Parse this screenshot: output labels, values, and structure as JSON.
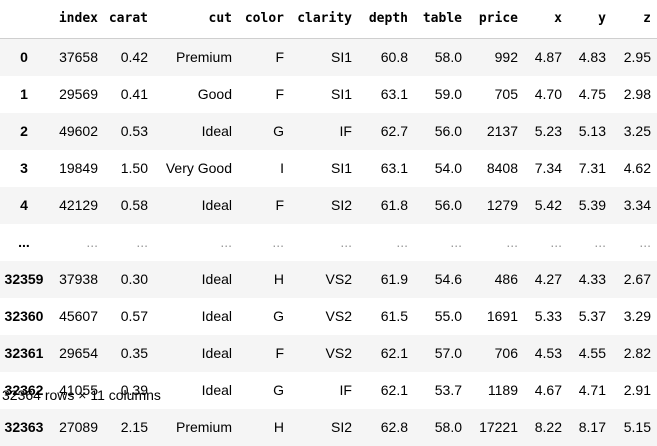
{
  "dataframe": {
    "columns": [
      "index",
      "carat",
      "cut",
      "color",
      "clarity",
      "depth",
      "table",
      "price",
      "x",
      "y",
      "z"
    ],
    "rows": [
      {
        "row_index": "0",
        "values": [
          "37658",
          "0.42",
          "Premium",
          "F",
          "SI1",
          "60.8",
          "58.0",
          "992",
          "4.87",
          "4.83",
          "2.95"
        ]
      },
      {
        "row_index": "1",
        "values": [
          "29569",
          "0.41",
          "Good",
          "F",
          "SI1",
          "63.1",
          "59.0",
          "705",
          "4.70",
          "4.75",
          "2.98"
        ]
      },
      {
        "row_index": "2",
        "values": [
          "49602",
          "0.53",
          "Ideal",
          "G",
          "IF",
          "62.7",
          "56.0",
          "2137",
          "5.23",
          "5.13",
          "3.25"
        ]
      },
      {
        "row_index": "3",
        "values": [
          "19849",
          "1.50",
          "Very Good",
          "I",
          "SI1",
          "63.1",
          "54.0",
          "8408",
          "7.34",
          "7.31",
          "4.62"
        ]
      },
      {
        "row_index": "4",
        "values": [
          "42129",
          "0.58",
          "Ideal",
          "F",
          "SI2",
          "61.8",
          "56.0",
          "1279",
          "5.42",
          "5.39",
          "3.34"
        ]
      },
      {
        "row_index": "...",
        "values": [
          "...",
          "...",
          "...",
          "...",
          "...",
          "...",
          "...",
          "...",
          "...",
          "...",
          "..."
        ]
      },
      {
        "row_index": "32359",
        "values": [
          "37938",
          "0.30",
          "Ideal",
          "H",
          "VS2",
          "61.9",
          "54.6",
          "486",
          "4.27",
          "4.33",
          "2.67"
        ]
      },
      {
        "row_index": "32360",
        "values": [
          "45607",
          "0.57",
          "Ideal",
          "G",
          "VS2",
          "61.5",
          "55.0",
          "1691",
          "5.33",
          "5.37",
          "3.29"
        ]
      },
      {
        "row_index": "32361",
        "values": [
          "29654",
          "0.35",
          "Ideal",
          "F",
          "VS2",
          "62.1",
          "57.0",
          "706",
          "4.53",
          "4.55",
          "2.82"
        ]
      },
      {
        "row_index": "32362",
        "values": [
          "41055",
          "0.39",
          "Ideal",
          "G",
          "IF",
          "62.1",
          "53.7",
          "1189",
          "4.67",
          "4.71",
          "2.91"
        ]
      },
      {
        "row_index": "32363",
        "values": [
          "27089",
          "2.15",
          "Premium",
          "H",
          "SI2",
          "62.8",
          "58.0",
          "17221",
          "8.22",
          "8.17",
          "5.15"
        ]
      }
    ],
    "summary": "32364 rows × 11 columns"
  }
}
